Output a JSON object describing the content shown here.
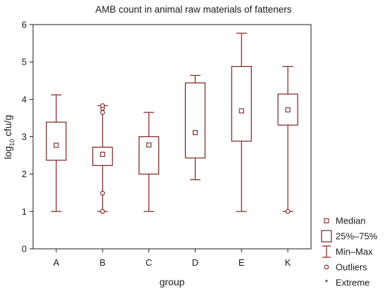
{
  "chart_data": {
    "type": "boxplot",
    "title": "AMB count in animal raw materials of fatteners",
    "xlabel": "group",
    "ylabel": {
      "base": "log",
      "subscript": "10",
      "rest": " cfu/g"
    },
    "ylim": [
      0,
      6
    ],
    "yticks": [
      0,
      1,
      2,
      3,
      4,
      5,
      6
    ],
    "ytick_labels": [
      "0",
      "1",
      "2",
      "3",
      "4",
      "5",
      "6"
    ],
    "grid": false,
    "legend_position": "right",
    "categories": [
      "A",
      "B",
      "C",
      "D",
      "E",
      "K"
    ],
    "boxes": [
      {
        "group": "A",
        "median": 2.77,
        "q1": 2.37,
        "q3": 3.39,
        "min": 1.0,
        "max": 4.12,
        "outliers": [],
        "extremes": []
      },
      {
        "group": "B",
        "median": 2.53,
        "q1": 2.23,
        "q3": 2.72,
        "min": 1.0,
        "max": 3.83,
        "outliers": [
          3.65,
          3.76,
          3.83,
          1.49,
          1.0
        ],
        "extremes": []
      },
      {
        "group": "C",
        "median": 2.78,
        "q1": 2.0,
        "q3": 3.0,
        "min": 1.0,
        "max": 3.65,
        "outliers": [],
        "extremes": []
      },
      {
        "group": "D",
        "median": 3.11,
        "q1": 2.43,
        "q3": 4.44,
        "min": 1.85,
        "max": 4.64,
        "outliers": [],
        "extremes": []
      },
      {
        "group": "E",
        "median": 3.69,
        "q1": 2.88,
        "q3": 4.88,
        "min": 1.0,
        "max": 5.77,
        "outliers": [],
        "extremes": []
      },
      {
        "group": "K",
        "median": 3.72,
        "q1": 3.31,
        "q3": 4.14,
        "min": 1.0,
        "max": 4.88,
        "outliers": [
          1.0
        ],
        "extremes": []
      }
    ],
    "legend": [
      {
        "key": "median",
        "label": "Median"
      },
      {
        "key": "box",
        "label": "25%–75%"
      },
      {
        "key": "whisker",
        "label": "Min–Max"
      },
      {
        "key": "outlier",
        "label": "Outliers"
      },
      {
        "key": "extreme",
        "label": "Extreme"
      }
    ],
    "colors": {
      "series": "#7b2020",
      "axis": "#1a1a1a",
      "text": "#1a1a1a",
      "background": "#ffffff"
    }
  }
}
